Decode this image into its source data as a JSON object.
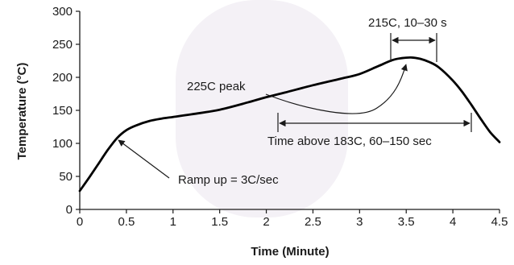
{
  "chart_data": {
    "type": "line",
    "title": "",
    "xlabel": "Time (Minute)",
    "ylabel": "Temperature (°C)",
    "xlim": [
      0,
      4.5
    ],
    "ylim": [
      0,
      300
    ],
    "xticks": [
      0,
      0.5,
      1,
      1.5,
      2,
      2.5,
      3,
      3.5,
      4,
      4.5
    ],
    "xtick_labels": [
      "0",
      "0.5",
      "1",
      "1.5",
      "2",
      "2.5",
      "3",
      "3.5",
      "4",
      "4.5"
    ],
    "yticks": [
      0,
      50,
      100,
      150,
      200,
      250,
      300
    ],
    "ytick_labels": [
      "0",
      "50",
      "100",
      "150",
      "200",
      "250",
      "300"
    ],
    "grid": false,
    "series": [
      {
        "x": [
          0,
          0.1,
          0.2,
          0.3,
          0.4,
          0.5,
          0.6,
          0.75,
          0.9,
          1.0,
          1.2,
          1.5,
          1.8,
          2.0,
          2.2,
          2.5,
          2.8,
          3.0,
          3.2,
          3.35,
          3.45,
          3.55,
          3.65,
          3.75,
          3.85,
          4.0,
          4.1,
          4.2,
          4.3,
          4.4,
          4.5
        ],
        "y": [
          28,
          48,
          69,
          90,
          108,
          120,
          127,
          134,
          138,
          140,
          144,
          151,
          162,
          170,
          177,
          188,
          198,
          205,
          217,
          226,
          229,
          230,
          228,
          223,
          215,
          195,
          178,
          158,
          137,
          117,
          102
        ]
      }
    ],
    "annotations": {
      "ramp": "Ramp up = 3C/sec",
      "peak": "225C peak",
      "window": "215C, 10–30 s",
      "time_above": "Time above 183C, 60–150 sec"
    }
  }
}
